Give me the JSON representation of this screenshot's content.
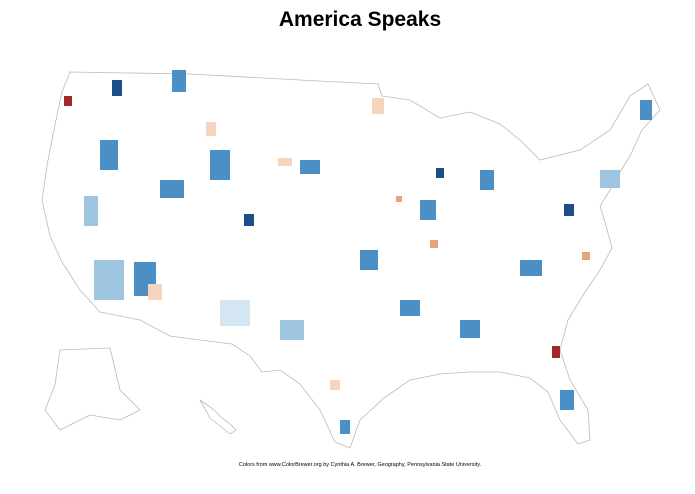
{
  "title": "America Speaks",
  "credit": "Colors from www.ColorBrewer.org by Cynthia A. Brewer, Geography, Pennsylvania State University."
}
